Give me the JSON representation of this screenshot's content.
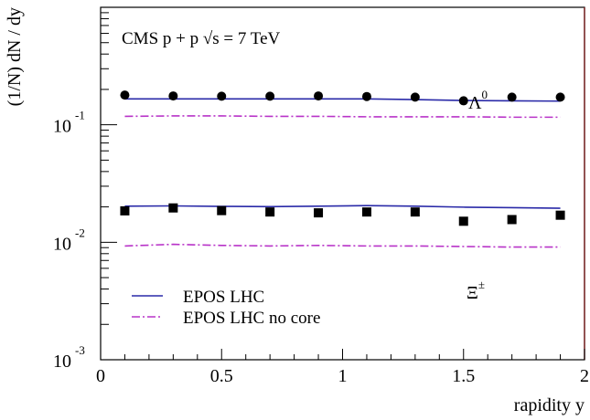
{
  "chart_data": {
    "type": "scatter",
    "title": "CMS p + p √s = 7 TeV",
    "xlabel": "rapidity y",
    "ylabel": "(1/N) dN / dy",
    "xlim": [
      0,
      2
    ],
    "ylim": [
      0.001,
      1
    ],
    "yscale": "log",
    "x_ticks": [
      {
        "value": 0,
        "label": "0"
      },
      {
        "value": 0.5,
        "label": "0.5"
      },
      {
        "value": 1,
        "label": "1"
      },
      {
        "value": 1.5,
        "label": "1.5"
      },
      {
        "value": 2,
        "label": "2"
      }
    ],
    "y_ticks": [
      {
        "value": 0.1,
        "base": "10",
        "exp": "-1"
      },
      {
        "value": 0.01,
        "base": "10",
        "exp": "-2"
      },
      {
        "value": 0.001,
        "base": "10",
        "exp": "-3"
      }
    ],
    "series": [
      {
        "name": "Λ⁰",
        "marker": "circle",
        "color": "#000000",
        "x": [
          0.1,
          0.3,
          0.5,
          0.7,
          0.9,
          1.1,
          1.3,
          1.5,
          1.7,
          1.9
        ],
        "y": [
          0.179,
          0.176,
          0.175,
          0.175,
          0.176,
          0.174,
          0.172,
          0.16,
          0.172,
          0.172
        ]
      },
      {
        "name": "Ξ±",
        "marker": "square",
        "color": "#000000",
        "x": [
          0.1,
          0.3,
          0.5,
          0.7,
          0.9,
          1.1,
          1.3,
          1.5,
          1.7,
          1.9
        ],
        "y": [
          0.0185,
          0.0196,
          0.0186,
          0.0181,
          0.0178,
          0.0181,
          0.0181,
          0.0151,
          0.0156,
          0.017
        ]
      },
      {
        "name": "EPOS LHC",
        "style": "solid",
        "color": "#2a2aa8",
        "x": [
          0.1,
          0.3,
          0.5,
          0.7,
          0.9,
          1.1,
          1.3,
          1.5,
          1.7,
          1.9
        ],
        "y": [
          0.166,
          0.166,
          0.166,
          0.166,
          0.166,
          0.166,
          0.164,
          0.161,
          0.16,
          0.159
        ]
      },
      {
        "name": "EPOS LHC",
        "style": "solid",
        "color": "#2a2aa8",
        "x": [
          0.1,
          0.3,
          0.5,
          0.7,
          0.9,
          1.1,
          1.3,
          1.5,
          1.7,
          1.9
        ],
        "y": [
          0.0203,
          0.0204,
          0.0202,
          0.0201,
          0.0203,
          0.0205,
          0.0203,
          0.0199,
          0.0197,
          0.0195
        ]
      },
      {
        "name": "EPOS LHC no core",
        "style": "dashdot",
        "color": "#b833c8",
        "x": [
          0.1,
          0.3,
          0.5,
          0.7,
          0.9,
          1.1,
          1.3,
          1.5,
          1.7,
          1.9
        ],
        "y": [
          0.118,
          0.119,
          0.119,
          0.118,
          0.118,
          0.117,
          0.117,
          0.117,
          0.116,
          0.116
        ]
      },
      {
        "name": "EPOS LHC no core",
        "style": "dashdot",
        "color": "#b833c8",
        "x": [
          0.1,
          0.3,
          0.5,
          0.7,
          0.9,
          1.1,
          1.3,
          1.5,
          1.7,
          1.9
        ],
        "y": [
          0.0093,
          0.0096,
          0.0094,
          0.0093,
          0.0094,
          0.0093,
          0.0093,
          0.0092,
          0.0091,
          0.0091
        ]
      }
    ],
    "annotations": [
      {
        "text": "Λ",
        "sup": "0"
      },
      {
        "text": "Ξ",
        "sup": "±"
      }
    ],
    "legend": {
      "position": "bottom-left",
      "entries": [
        {
          "label": "EPOS LHC",
          "style": "solid",
          "color": "#2a2aa8"
        },
        {
          "label": "EPOS LHC no core",
          "style": "dashdot",
          "color": "#b833c8"
        }
      ]
    },
    "grid": false
  }
}
